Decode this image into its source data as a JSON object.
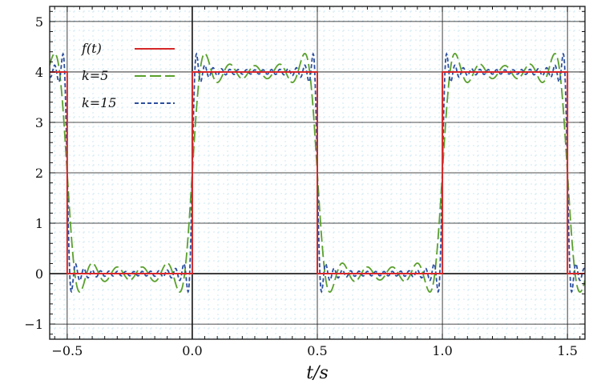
{
  "chart_data": {
    "type": "line",
    "title": "",
    "xlabel": "t/s",
    "ylabel": "",
    "xlim": [
      -0.57,
      1.57
    ],
    "ylim": [
      -1.3,
      5.3
    ],
    "x_ticks": [
      -0.5,
      0.0,
      0.5,
      1.0,
      1.5
    ],
    "x_tick_labels": [
      "−0.5",
      "0.0",
      "0.5",
      "1.0",
      "1.5"
    ],
    "y_ticks": [
      -1,
      0,
      1,
      2,
      3,
      4,
      5
    ],
    "y_tick_labels": [
      "−1",
      "0",
      "1",
      "2",
      "3",
      "4",
      "5"
    ],
    "grid": true,
    "legend_position": "top-left",
    "background_pattern": "light cyan dotted grid",
    "series": [
      {
        "name": "f(t)",
        "style": "solid",
        "color": "#d62728",
        "description": "square wave, period 1, high value 4 on [0,0.5), low value 0 on [0.5,1)",
        "x": [
          -0.57,
          -0.5,
          -0.5,
          0.0,
          0.0,
          0.5,
          0.5,
          1.0,
          1.0,
          1.5,
          1.5,
          1.57
        ],
        "y": [
          4,
          4,
          0,
          0,
          4,
          4,
          0,
          0,
          4,
          4,
          0,
          0
        ]
      },
      {
        "name": "k=5",
        "style": "long-dash",
        "color": "#5aa02c",
        "harmonics": 5,
        "formula": "2 + (8/pi) * sum_{n=1..5} sin(2*pi*(2n-1)*t)/(2n-1)"
      },
      {
        "name": "k=15",
        "style": "short-dash",
        "color": "#2c4f9e",
        "harmonics": 15,
        "formula": "2 + (8/pi) * sum_{n=1..15} sin(2*pi*(2n-1)*t)/(2n-1)"
      }
    ],
    "legend": [
      {
        "label": "f(t)",
        "style": "solid",
        "color": "#d62728"
      },
      {
        "label": "k=5",
        "style": "long-dash",
        "color": "#5aa02c"
      },
      {
        "label": "k=15",
        "style": "short-dash",
        "color": "#2c4f9e"
      }
    ]
  }
}
